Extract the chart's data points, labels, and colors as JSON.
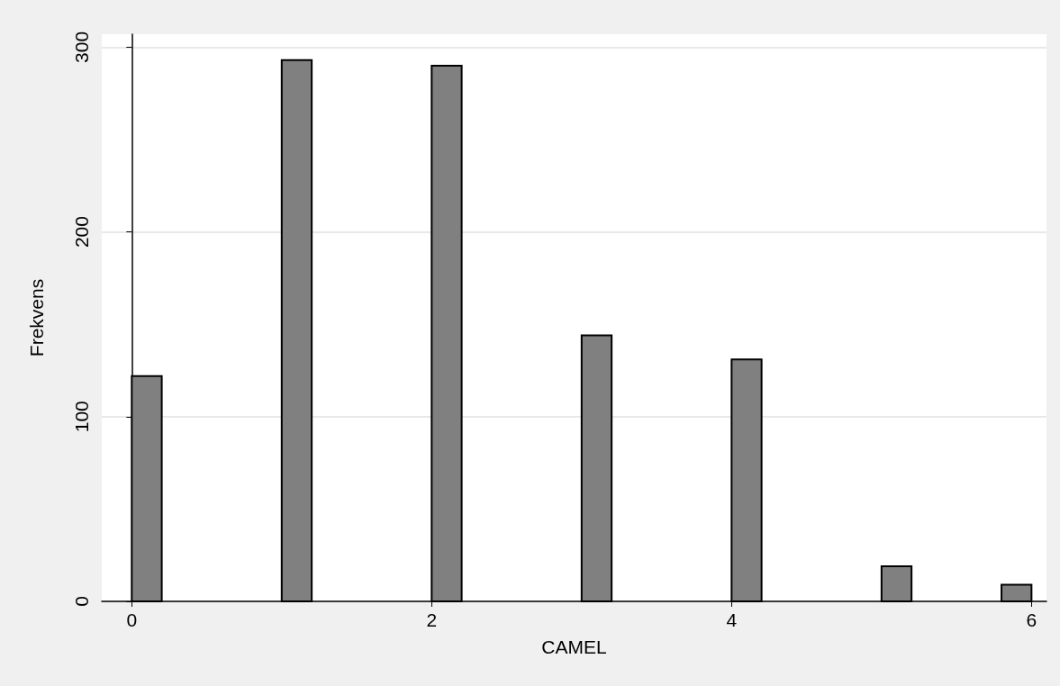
{
  "chart_data": {
    "type": "histogram",
    "xlabel": "CAMEL",
    "ylabel": "Frekvens",
    "bins": [
      0,
      0.2,
      0.4,
      0.6,
      0.8,
      1,
      1.2,
      1.4,
      1.6,
      1.8,
      2,
      2.2,
      2.4,
      2.6,
      2.8,
      3,
      3.2,
      3.4,
      3.6,
      3.8,
      4,
      4.2,
      4.4,
      4.6,
      4.8,
      5,
      5.2,
      5.4,
      5.6,
      5.8,
      6
    ],
    "values": [
      122,
      0,
      0,
      0,
      0,
      293,
      0,
      0,
      0,
      0,
      290,
      0,
      0,
      0,
      0,
      144,
      0,
      0,
      0,
      0,
      131,
      0,
      0,
      0,
      0,
      19,
      0,
      0,
      0,
      9
    ],
    "color": "#808080",
    "xlim": [
      -0.2,
      6.1
    ],
    "xticks": [
      0,
      2,
      4,
      6
    ],
    "ylim": [
      0,
      307
    ],
    "yticks": [
      0,
      100,
      200,
      300
    ],
    "grid": "y"
  }
}
